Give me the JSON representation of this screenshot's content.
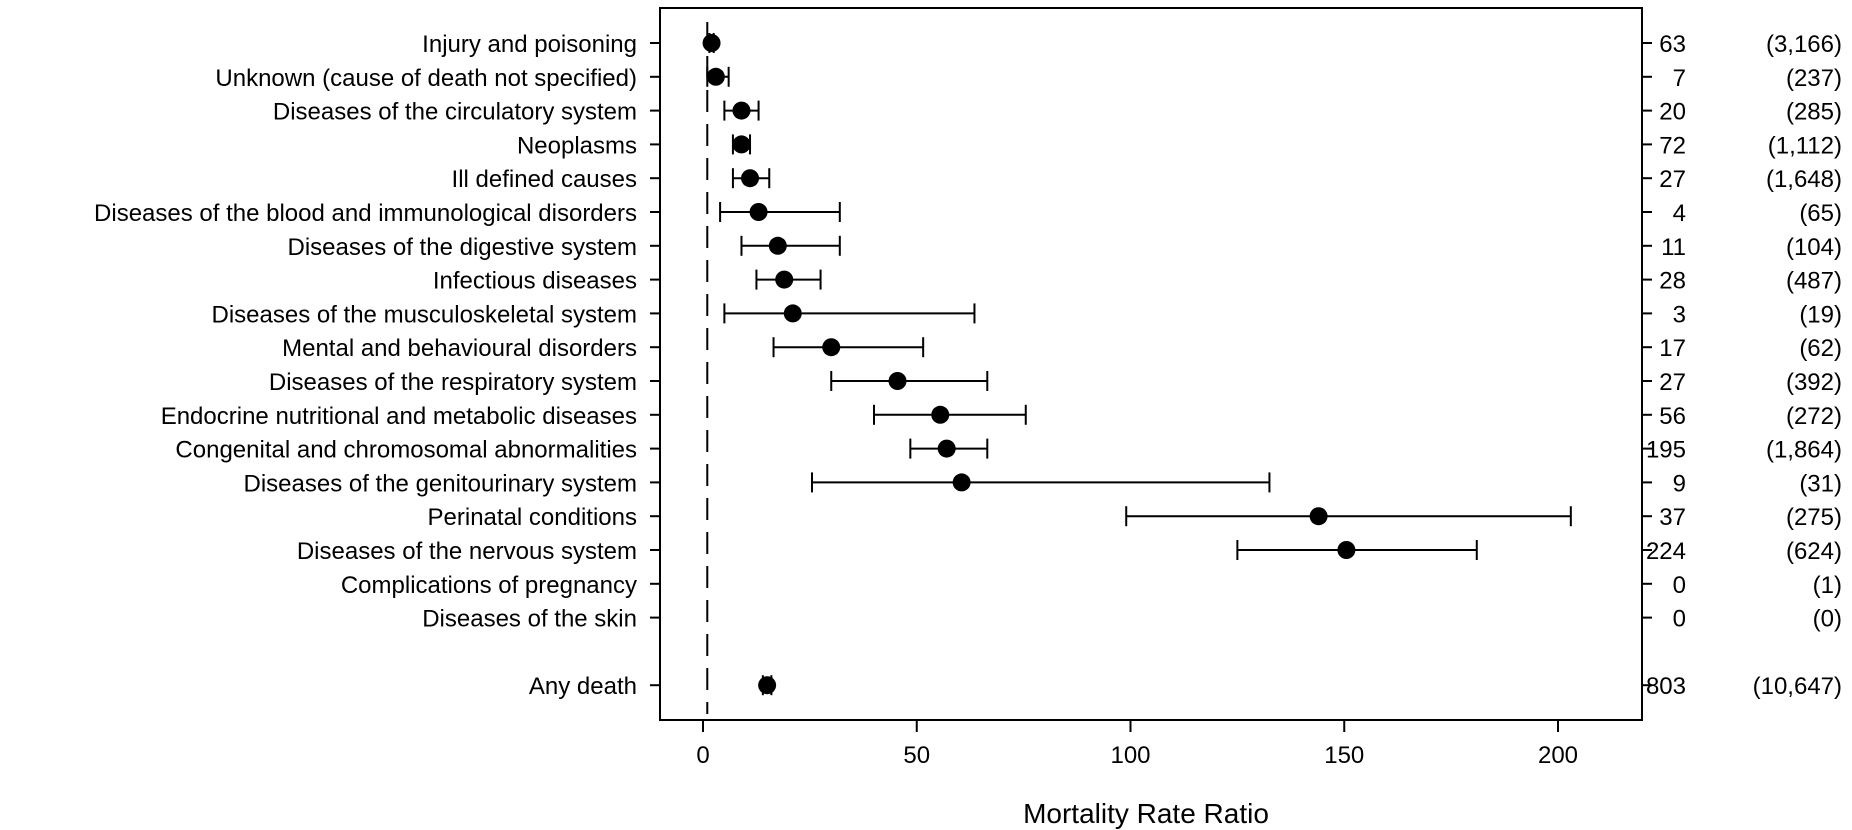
{
  "chart_data": {
    "type": "scatter",
    "xlabel": "Mortality Rate Ratio",
    "xlim": [
      -10,
      220
    ],
    "xticks": [
      0,
      50,
      100,
      150,
      200
    ],
    "reference_line_x": 1,
    "rows": [
      {
        "label": "Injury and poisoning",
        "mrr": 2,
        "lo": 1.5,
        "hi": 2.5,
        "deaths": "63",
        "n": "(3,166)"
      },
      {
        "label": "Unknown (cause of death not specified)",
        "mrr": 3,
        "lo": 1,
        "hi": 6,
        "deaths": "7",
        "n": "(237)"
      },
      {
        "label": "Diseases of the circulatory system",
        "mrr": 9,
        "lo": 5,
        "hi": 13,
        "deaths": "20",
        "n": "(285)"
      },
      {
        "label": "Neoplasms",
        "mrr": 9,
        "lo": 7,
        "hi": 11,
        "deaths": "72",
        "n": "(1,112)"
      },
      {
        "label": "Ill defined causes",
        "mrr": 11,
        "lo": 7,
        "hi": 15.5,
        "deaths": "27",
        "n": "(1,648)"
      },
      {
        "label": "Diseases of the blood and immunological disorders",
        "mrr": 13,
        "lo": 4,
        "hi": 32,
        "deaths": "4",
        "n": "(65)"
      },
      {
        "label": "Diseases of the digestive system",
        "mrr": 17.5,
        "lo": 9,
        "hi": 32,
        "deaths": "11",
        "n": "(104)"
      },
      {
        "label": "Infectious diseases",
        "mrr": 19,
        "lo": 12.5,
        "hi": 27.5,
        "deaths": "28",
        "n": "(487)"
      },
      {
        "label": "Diseases of the musculoskeletal system",
        "mrr": 21,
        "lo": 5,
        "hi": 63.5,
        "deaths": "3",
        "n": "(19)"
      },
      {
        "label": "Mental and behavioural disorders",
        "mrr": 30,
        "lo": 16.5,
        "hi": 51.5,
        "deaths": "17",
        "n": "(62)"
      },
      {
        "label": "Diseases of the respiratory system",
        "mrr": 45.5,
        "lo": 30,
        "hi": 66.5,
        "deaths": "27",
        "n": "(392)"
      },
      {
        "label": "Endocrine nutritional and metabolic diseases",
        "mrr": 55.5,
        "lo": 40,
        "hi": 75.5,
        "deaths": "56",
        "n": "(272)"
      },
      {
        "label": "Congenital and chromosomal abnormalities",
        "mrr": 57,
        "lo": 48.5,
        "hi": 66.5,
        "deaths": "195",
        "n": "(1,864)"
      },
      {
        "label": "Diseases of the genitourinary system",
        "mrr": 60.5,
        "lo": 25.5,
        "hi": 132.5,
        "deaths": "9",
        "n": "(31)"
      },
      {
        "label": "Perinatal conditions",
        "mrr": 144,
        "lo": 99,
        "hi": 203,
        "deaths": "37",
        "n": "(275)"
      },
      {
        "label": "Diseases of the nervous system",
        "mrr": 150.5,
        "lo": 125,
        "hi": 181,
        "deaths": "224",
        "n": "(624)"
      },
      {
        "label": "Complications of pregnancy",
        "mrr": null,
        "lo": null,
        "hi": null,
        "deaths": "0",
        "n": "(1)"
      },
      {
        "label": "Diseases of the skin",
        "mrr": null,
        "lo": null,
        "hi": null,
        "deaths": "0",
        "n": "(0)"
      },
      {
        "label": "",
        "mrr": null,
        "lo": null,
        "hi": null,
        "deaths": "",
        "n": ""
      },
      {
        "label": "Any death",
        "mrr": 15,
        "lo": 14,
        "hi": 16,
        "deaths": "803",
        "n": "(10,647)"
      }
    ]
  }
}
